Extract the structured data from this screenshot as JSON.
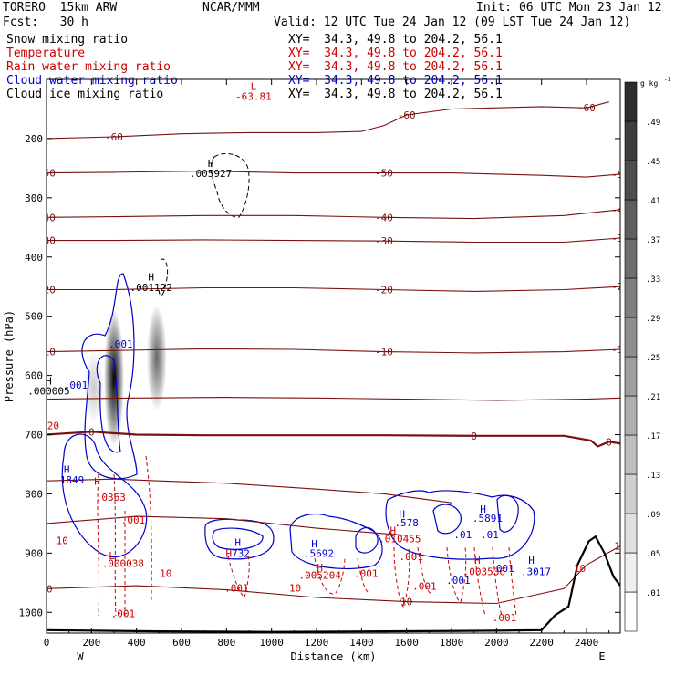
{
  "header": {
    "model": "TORERO  15km ARW",
    "center": "NCAR/MMM",
    "init": "Init: 06 UTC Mon 23 Jan 12",
    "fcst": "Fcst:   30 h",
    "valid": "Valid: 12 UTC Tue 24 Jan 12 (09 LST Tue 24 Jan 12)"
  },
  "legend": [
    {
      "label": "Snow mixing ratio",
      "color": "#000000",
      "xy": "XY=  34.3, 49.8 to 204.2, 56.1"
    },
    {
      "label": "Temperature",
      "color": "#cc0000",
      "xy": "XY=  34.3, 49.8 to 204.2, 56.1"
    },
    {
      "label": "Rain water mixing ratio",
      "color": "#cc0000",
      "xy": "XY=  34.3, 49.8 to 204.2, 56.1"
    },
    {
      "label": "Cloud water mixing ratio",
      "color": "#0000cc",
      "xy": "XY=  34.3, 49.8 to 204.2, 56.1"
    },
    {
      "label": "Cloud ice mixing ratio",
      "color": "#000000",
      "xy": "XY=  34.3, 49.8 to 204.2, 56.1"
    }
  ],
  "chart_data": {
    "type": "heatmap",
    "xlabel": "Distance (km)",
    "ylabel": "Pressure (hPa)",
    "xlim": [
      0,
      2550
    ],
    "ylim": [
      1035,
      100
    ],
    "x_ticks": [
      0,
      200,
      400,
      600,
      800,
      1000,
      1200,
      1400,
      1600,
      1800,
      2000,
      2200,
      2400
    ],
    "y_ticks": [
      200,
      300,
      400,
      500,
      600,
      700,
      800,
      900,
      1000
    ],
    "x_end_labels": {
      "left": "W",
      "right": "E"
    },
    "colorbar": {
      "unit": "g kg",
      "levels": [
        0.01,
        0.05,
        0.09,
        0.13,
        0.17,
        0.21,
        0.25,
        0.29,
        0.33,
        0.37,
        0.41,
        0.45,
        0.49
      ],
      "tick_labels": [
        ".01",
        ".05",
        ".09",
        ".13",
        ".17",
        ".21",
        ".25",
        ".29",
        ".33",
        ".37",
        ".41",
        ".45",
        ".49"
      ]
    },
    "snow_shading": [
      {
        "x": 300,
        "p_top": 490,
        "p_bottom": 720,
        "peak": 0.5
      },
      {
        "x": 490,
        "p_top": 480,
        "p_bottom": 660,
        "peak": 0.3
      },
      {
        "x": 210,
        "p_top": 560,
        "p_bottom": 680,
        "peak": 0.1
      }
    ],
    "temperature_contours": [
      {
        "label": "-60",
        "points": [
          [
            0,
            200
          ],
          [
            300,
            197
          ],
          [
            600,
            192
          ],
          [
            900,
            190
          ],
          [
            1200,
            190
          ],
          [
            1400,
            188
          ],
          [
            1500,
            178
          ],
          [
            1600,
            160
          ],
          [
            1800,
            150
          ],
          [
            2000,
            148
          ],
          [
            2200,
            146
          ],
          [
            2400,
            148
          ],
          [
            2500,
            138
          ]
        ]
      },
      {
        "label": "-50",
        "points": [
          [
            0,
            258
          ],
          [
            300,
            257
          ],
          [
            700,
            255
          ],
          [
            1100,
            258
          ],
          [
            1500,
            258
          ],
          [
            1800,
            258
          ],
          [
            2200,
            262
          ],
          [
            2400,
            265
          ],
          [
            2550,
            260
          ]
        ]
      },
      {
        "label": "-40",
        "points": [
          [
            0,
            333
          ],
          [
            300,
            332
          ],
          [
            700,
            330
          ],
          [
            1100,
            330
          ],
          [
            1500,
            333
          ],
          [
            1900,
            335
          ],
          [
            2300,
            330
          ],
          [
            2550,
            320
          ]
        ]
      },
      {
        "label": "-30",
        "points": [
          [
            0,
            372
          ],
          [
            300,
            372
          ],
          [
            700,
            371
          ],
          [
            1100,
            372
          ],
          [
            1500,
            373
          ],
          [
            1900,
            375
          ],
          [
            2300,
            375
          ],
          [
            2550,
            368
          ]
        ]
      },
      {
        "label": "-20",
        "points": [
          [
            0,
            455
          ],
          [
            300,
            455
          ],
          [
            700,
            452
          ],
          [
            1100,
            452
          ],
          [
            1500,
            455
          ],
          [
            1900,
            458
          ],
          [
            2300,
            455
          ],
          [
            2550,
            450
          ]
        ]
      },
      {
        "label": "-10",
        "points": [
          [
            0,
            560
          ],
          [
            300,
            558
          ],
          [
            700,
            555
          ],
          [
            1100,
            556
          ],
          [
            1500,
            560
          ],
          [
            1900,
            562
          ],
          [
            2300,
            560
          ],
          [
            2550,
            556
          ]
        ]
      },
      {
        "label": "",
        "points": [
          [
            0,
            640
          ],
          [
            400,
            638
          ],
          [
            800,
            637
          ],
          [
            1200,
            638
          ],
          [
            1600,
            640
          ],
          [
            2000,
            642
          ],
          [
            2400,
            640
          ],
          [
            2550,
            638
          ]
        ]
      },
      {
        "label": "0",
        "points": [
          [
            0,
            700
          ],
          [
            200,
            695
          ],
          [
            400,
            700
          ],
          [
            700,
            701
          ],
          [
            1100,
            701
          ],
          [
            1500,
            701
          ],
          [
            1900,
            702
          ],
          [
            2300,
            702
          ],
          [
            2420,
            710
          ],
          [
            2450,
            720
          ],
          [
            2500,
            712
          ],
          [
            2550,
            715
          ]
        ]
      },
      {
        "label": "",
        "points": [
          [
            0,
            778
          ],
          [
            300,
            775
          ],
          [
            500,
            778
          ],
          [
            800,
            782
          ],
          [
            1200,
            792
          ],
          [
            1500,
            800
          ],
          [
            1800,
            815
          ]
        ]
      },
      {
        "label": "",
        "points": [
          [
            0,
            850
          ],
          [
            400,
            838
          ],
          [
            800,
            842
          ],
          [
            1200,
            858
          ],
          [
            1600,
            870
          ]
        ]
      },
      {
        "label": "10",
        "points": [
          [
            0,
            960
          ],
          [
            400,
            955
          ],
          [
            800,
            962
          ],
          [
            1200,
            975
          ],
          [
            1600,
            982
          ],
          [
            2000,
            985
          ],
          [
            2300,
            960
          ],
          [
            2400,
            920
          ],
          [
            2550,
            888
          ]
        ]
      }
    ],
    "terrain": {
      "points": [
        [
          0,
          1030
        ],
        [
          500,
          1032
        ],
        [
          1000,
          1033
        ],
        [
          1500,
          1032
        ],
        [
          2000,
          1031
        ],
        [
          2200,
          1030
        ],
        [
          2260,
          1005
        ],
        [
          2320,
          990
        ],
        [
          2360,
          920
        ],
        [
          2410,
          880
        ],
        [
          2440,
          872
        ],
        [
          2480,
          900
        ],
        [
          2520,
          940
        ],
        [
          2550,
          955
        ]
      ]
    },
    "annotations": [
      {
        "text": "L",
        "x": 920,
        "p": 118,
        "color": "#cc0000"
      },
      {
        "text": "-63.81",
        "x": 920,
        "p": 135,
        "color": "#cc0000"
      },
      {
        "text": "H",
        "x": 730,
        "p": 248,
        "color": "#000000"
      },
      {
        "text": ".005927",
        "x": 730,
        "p": 265,
        "color": "#000000"
      },
      {
        "text": "H",
        "x": 465,
        "p": 440,
        "color": "#000000"
      },
      {
        "text": ".001122",
        "x": 465,
        "p": 457,
        "color": "#000000"
      },
      {
        "text": ".001",
        "x": 330,
        "p": 553,
        "color": "#0000cc"
      },
      {
        "text": ".001",
        "x": 130,
        "p": 622,
        "color": "#0000cc"
      },
      {
        "text": "H",
        "x": 10,
        "p": 615,
        "color": "#000000"
      },
      {
        "text": ".000005",
        "x": 10,
        "p": 632,
        "color": "#000000"
      },
      {
        "text": "20",
        "x": 30,
        "p": 691,
        "color": "#cc0000"
      },
      {
        "text": "H",
        "x": 90,
        "p": 765,
        "color": "#0000cc"
      },
      {
        "text": ".1849",
        "x": 100,
        "p": 782,
        "color": "#0000cc"
      },
      {
        "text": "H",
        "x": 225,
        "p": 785,
        "color": "#cc0000"
      },
      {
        "text": ".0363",
        "x": 285,
        "p": 812,
        "color": "#cc0000"
      },
      {
        "text": ".001",
        "x": 385,
        "p": 850,
        "color": "#cc0000"
      },
      {
        "text": "10",
        "x": 70,
        "p": 885,
        "color": "#cc0000"
      },
      {
        "text": "L",
        "x": 290,
        "p": 910,
        "color": "#cc0000"
      },
      {
        "text": ".000038",
        "x": 340,
        "p": 923,
        "color": "#cc0000"
      },
      {
        "text": "10",
        "x": 530,
        "p": 940,
        "color": "#cc0000"
      },
      {
        "text": ".001",
        "x": 340,
        "p": 1008,
        "color": "#cc0000"
      },
      {
        "text": "H",
        "x": 850,
        "p": 888,
        "color": "#0000cc"
      },
      {
        "text": "H",
        "x": 810,
        "p": 906,
        "color": "#cc0000"
      },
      {
        "text": ".732",
        "x": 850,
        "p": 906,
        "color": "#0000cc"
      },
      {
        "text": ".001",
        "x": 845,
        "p": 965,
        "color": "#cc0000"
      },
      {
        "text": "H",
        "x": 1190,
        "p": 890,
        "color": "#0000cc"
      },
      {
        "text": ".5692",
        "x": 1210,
        "p": 906,
        "color": "#0000cc"
      },
      {
        "text": "H",
        "x": 1215,
        "p": 930,
        "color": "#cc0000"
      },
      {
        "text": ".005204",
        "x": 1215,
        "p": 943,
        "color": "#cc0000"
      },
      {
        "text": ".001",
        "x": 1420,
        "p": 940,
        "color": "#cc0000"
      },
      {
        "text": "10",
        "x": 1105,
        "p": 965,
        "color": "#cc0000"
      },
      {
        "text": "H",
        "x": 1580,
        "p": 840,
        "color": "#0000cc"
      },
      {
        "text": ".578",
        "x": 1600,
        "p": 855,
        "color": "#0000cc"
      },
      {
        "text": "H",
        "x": 1540,
        "p": 868,
        "color": "#cc0000"
      },
      {
        "text": ".010455",
        "x": 1570,
        "p": 882,
        "color": "#cc0000"
      },
      {
        "text": ".001",
        "x": 1620,
        "p": 912,
        "color": "#cc0000"
      },
      {
        "text": ".001",
        "x": 1680,
        "p": 962,
        "color": "#cc0000"
      },
      {
        "text": ".001",
        "x": 1830,
        "p": 952,
        "color": "#0000cc"
      },
      {
        "text": ".01",
        "x": 1850,
        "p": 875,
        "color": "#0000cc"
      },
      {
        "text": "H",
        "x": 1940,
        "p": 832,
        "color": "#0000cc"
      },
      {
        "text": ".5891",
        "x": 1960,
        "p": 847,
        "color": "#0000cc"
      },
      {
        "text": ".01",
        "x": 1970,
        "p": 875,
        "color": "#0000cc"
      },
      {
        "text": "H",
        "x": 1915,
        "p": 918,
        "color": "#cc0000"
      },
      {
        "text": ".003536",
        "x": 1945,
        "p": 937,
        "color": "#cc0000"
      },
      {
        "text": ".001",
        "x": 2025,
        "p": 932,
        "color": "#0000cc"
      },
      {
        "text": "H",
        "x": 2155,
        "p": 918,
        "color": "#0000cc"
      },
      {
        "text": ".3017",
        "x": 2175,
        "p": 937,
        "color": "#0000cc"
      },
      {
        "text": ".001",
        "x": 2035,
        "p": 1015,
        "color": "#cc0000"
      },
      {
        "text": "10",
        "x": 2370,
        "p": 932,
        "color": "#cc0000"
      }
    ]
  }
}
